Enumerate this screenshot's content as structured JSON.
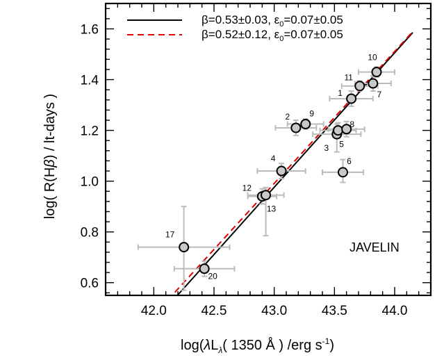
{
  "chart_data": {
    "type": "scatter",
    "xlabel": "log(λL_λ( 1350 Å ) /erg s^-1)",
    "ylabel": "log( R(Hβ) / lt-days )",
    "xlim": [
      41.6,
      44.3
    ],
    "ylim": [
      0.55,
      1.7
    ],
    "xticks": [
      "42.0",
      "42.5",
      "43.0",
      "43.5",
      "44.0"
    ],
    "yticks": [
      "0.6",
      "0.8",
      "1.0",
      "1.2",
      "1.4",
      "1.6"
    ],
    "annotation": "JAVELIN",
    "legend_position": "top",
    "fits": [
      {
        "name": "β=0.53±0.03, ε0=0.07±0.05",
        "slope": 0.53,
        "intercept_at_44": 1.506,
        "x_range": [
          42.0,
          44.15
        ],
        "color": "#000000",
        "dash": "solid"
      },
      {
        "name": "β=0.52±0.12, ε0=0.07±0.05",
        "slope": 0.52,
        "intercept_at_44": 1.511,
        "x_range": [
          42.0,
          44.15
        ],
        "color": "#e00000",
        "dash": "dashed"
      }
    ],
    "points": [
      {
        "id": "1",
        "x": 43.64,
        "y": 1.325,
        "xerr_lo": 0.18,
        "xerr_hi": 0.18,
        "yerr_lo": 0.03,
        "yerr_hi": 0.03
      },
      {
        "id": "2",
        "x": 43.18,
        "y": 1.21,
        "xerr_lo": 0.17,
        "xerr_hi": 0.17,
        "yerr_lo": 0.03,
        "yerr_hi": 0.03
      },
      {
        "id": "3",
        "x": 43.52,
        "y": 1.185,
        "xerr_lo": 0.2,
        "xerr_hi": 0.2,
        "yerr_lo": 0.07,
        "yerr_hi": 0.04
      },
      {
        "id": "4",
        "x": 43.06,
        "y": 1.04,
        "xerr_lo": 0.2,
        "xerr_hi": 0.2,
        "yerr_lo": 0.03,
        "yerr_hi": 0.03
      },
      {
        "id": "5",
        "x": 43.53,
        "y": 1.2,
        "xerr_lo": 0.15,
        "xerr_hi": 0.15,
        "yerr_lo": 0.03,
        "yerr_hi": 0.03
      },
      {
        "id": "6",
        "x": 43.57,
        "y": 1.035,
        "xerr_lo": 0.17,
        "xerr_hi": 0.17,
        "yerr_lo": 0.04,
        "yerr_hi": 0.05
      },
      {
        "id": "7",
        "x": 43.82,
        "y": 1.385,
        "xerr_lo": 0.15,
        "xerr_hi": 0.15,
        "yerr_lo": 0.03,
        "yerr_hi": 0.03
      },
      {
        "id": "8",
        "x": 43.6,
        "y": 1.205,
        "xerr_lo": 0.15,
        "xerr_hi": 0.15,
        "yerr_lo": 0.03,
        "yerr_hi": 0.03
      },
      {
        "id": "9",
        "x": 43.26,
        "y": 1.225,
        "xerr_lo": 0.15,
        "xerr_hi": 0.15,
        "yerr_lo": 0.02,
        "yerr_hi": 0.02
      },
      {
        "id": "10",
        "x": 43.85,
        "y": 1.43,
        "xerr_lo": 0.15,
        "xerr_hi": 0.15,
        "yerr_lo": 0.02,
        "yerr_hi": 0.02
      },
      {
        "id": "11",
        "x": 43.71,
        "y": 1.375,
        "xerr_lo": 0.15,
        "xerr_hi": 0.15,
        "yerr_lo": 0.02,
        "yerr_hi": 0.02
      },
      {
        "id": "12",
        "x": 42.9,
        "y": 0.94,
        "xerr_lo": 0.12,
        "xerr_hi": 0.12,
        "yerr_lo": 0.03,
        "yerr_hi": 0.03
      },
      {
        "id": "13",
        "x": 42.93,
        "y": 0.945,
        "xerr_lo": 0.15,
        "xerr_hi": 0.15,
        "yerr_lo": 0.16,
        "yerr_hi": 0.03
      },
      {
        "id": "17",
        "x": 42.25,
        "y": 0.74,
        "xerr_lo": 0.38,
        "xerr_hi": 0.38,
        "yerr_lo": 0.17,
        "yerr_hi": 0.16
      },
      {
        "id": "20",
        "x": 42.42,
        "y": 0.655,
        "xerr_lo": 0.25,
        "xerr_hi": 0.25,
        "yerr_lo": 0.03,
        "yerr_hi": 0.03
      }
    ]
  }
}
